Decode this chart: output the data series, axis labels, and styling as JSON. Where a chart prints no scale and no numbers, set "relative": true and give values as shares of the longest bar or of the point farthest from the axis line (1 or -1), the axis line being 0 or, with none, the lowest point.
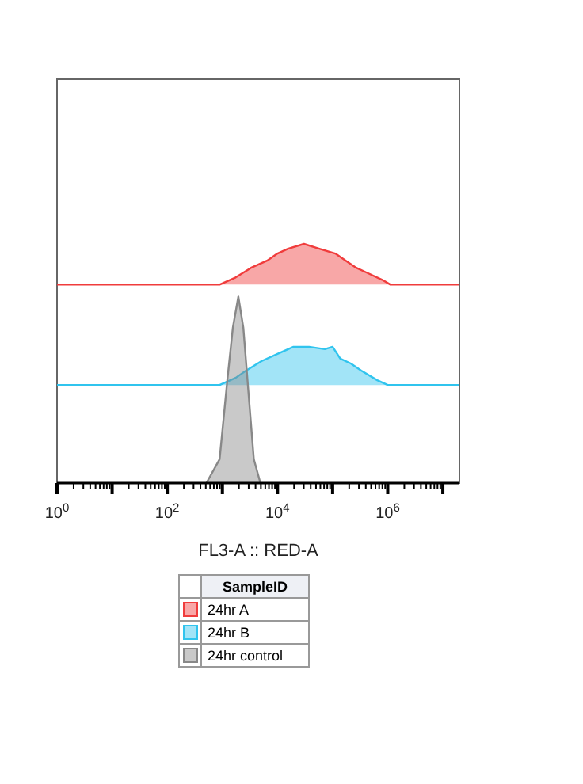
{
  "chart_data": {
    "type": "area",
    "relative": true,
    "log": "x",
    "xlabel": "FL3-A :: RED-A",
    "legend_title": "SampleID",
    "legend": "bottom",
    "grid": false,
    "xlim": [
      1,
      20000000
    ],
    "xticks": [
      {
        "value": 1,
        "label": "10$^{0}$"
      },
      {
        "value": 2,
        "label": null
      },
      {
        "value": 3,
        "label": null
      },
      {
        "value": 4,
        "label": null
      },
      {
        "value": 5,
        "label": null
      },
      {
        "value": 6,
        "label": null
      },
      {
        "value": 7,
        "label": null
      },
      {
        "value": 8,
        "label": null
      },
      {
        "value": 9,
        "label": null
      },
      {
        "value": 10,
        "label": null
      },
      {
        "value": 20,
        "label": null
      },
      {
        "value": 30,
        "label": null
      },
      {
        "value": 40,
        "label": null
      },
      {
        "value": 50,
        "label": null
      },
      {
        "value": 60,
        "label": null
      },
      {
        "value": 70,
        "label": null
      },
      {
        "value": 80,
        "label": null
      },
      {
        "value": 90,
        "label": null
      },
      {
        "value": 100,
        "label": "10$^{2}$"
      },
      {
        "value": 200,
        "label": null
      },
      {
        "value": 300,
        "label": null
      },
      {
        "value": 400,
        "label": null
      },
      {
        "value": 500,
        "label": null
      },
      {
        "value": 600,
        "label": null
      },
      {
        "value": 700,
        "label": null
      },
      {
        "value": 800,
        "label": null
      },
      {
        "value": 900,
        "label": null
      },
      {
        "value": 1000,
        "label": null
      },
      {
        "value": 2000,
        "label": null
      },
      {
        "value": 3000,
        "label": null
      },
      {
        "value": 4000,
        "label": null
      },
      {
        "value": 5000,
        "label": null
      },
      {
        "value": 6000,
        "label": null
      },
      {
        "value": 7000,
        "label": null
      },
      {
        "value": 8000,
        "label": null
      },
      {
        "value": 9000,
        "label": null
      },
      {
        "value": 10000,
        "label": "10$^{4}$"
      },
      {
        "value": 20000,
        "label": null
      },
      {
        "value": 30000,
        "label": null
      },
      {
        "value": 40000,
        "label": null
      },
      {
        "value": 50000,
        "label": null
      },
      {
        "value": 60000,
        "label": null
      },
      {
        "value": 70000,
        "label": null
      },
      {
        "value": 80000,
        "label": null
      },
      {
        "value": 90000,
        "label": null
      },
      {
        "value": 100000,
        "label": null
      },
      {
        "value": 200000,
        "label": null
      },
      {
        "value": 300000,
        "label": null
      },
      {
        "value": 400000,
        "label": null
      },
      {
        "value": 500000,
        "label": null
      },
      {
        "value": 600000,
        "label": null
      },
      {
        "value": 700000,
        "label": null
      },
      {
        "value": 800000,
        "label": null
      },
      {
        "value": 900000,
        "label": null
      },
      {
        "value": 1000000,
        "label": "10$^{6}$"
      },
      {
        "value": 2000000,
        "label": null
      },
      {
        "value": 3000000,
        "label": null
      },
      {
        "value": 4000000,
        "label": null
      },
      {
        "value": 5000000,
        "label": null
      },
      {
        "value": 6000000,
        "label": null
      },
      {
        "value": 7000000,
        "label": null
      },
      {
        "value": 8000000,
        "label": null
      },
      {
        "value": 9000000,
        "label": null
      },
      {
        "value": 10000000,
        "label": null
      }
    ],
    "series": [
      {
        "name": "24hr A",
        "color": "#f03c3c",
        "x": [
          1,
          891,
          1740,
          3310,
          6460,
          10000,
          15500,
          30200,
          57500,
          112000,
          174000,
          269000,
          417000,
          794000,
          1120000,
          20000000
        ],
        "values": [
          0.83,
          0.83,
          0.86,
          0.9,
          0.93,
          0.96,
          0.98,
          1,
          0.98,
          0.96,
          0.93,
          0.9,
          0.88,
          0.85,
          0.83,
          0.83
        ]
      },
      {
        "name": "24hr B",
        "color": "#30c4ee",
        "x": [
          1,
          891,
          1740,
          2690,
          5130,
          10000,
          19500,
          37200,
          72400,
          100000,
          138000,
          214000,
          331000,
          646000,
          1000000,
          20000000
        ],
        "values": [
          0.41,
          0.41,
          0.44,
          0.47,
          0.51,
          0.54,
          0.57,
          0.57,
          0.56,
          0.57,
          0.52,
          0.5,
          0.47,
          0.43,
          0.41,
          0.41
        ]
      },
      {
        "name": "24hr control",
        "color": "#888888",
        "x": [
          513,
          891,
          1230,
          1550,
          1950,
          2400,
          3020,
          3720,
          4900
        ],
        "values": [
          0,
          0.1,
          0.43,
          0.65,
          0.78,
          0.65,
          0.36,
          0.1,
          0
        ]
      }
    ]
  }
}
